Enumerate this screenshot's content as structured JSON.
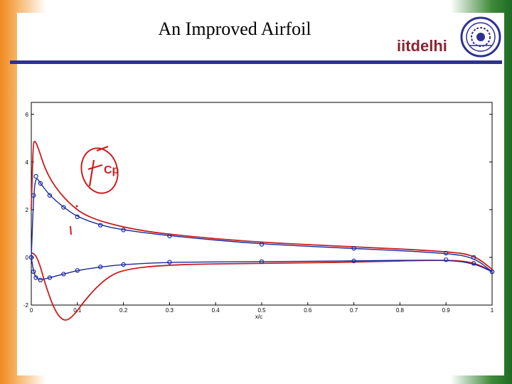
{
  "slide": {
    "title": "An Improved Airfoil",
    "logo": {
      "part1": "iitd",
      "part2": "elhi"
    },
    "annotation": "Cp"
  },
  "colors": {
    "brand_blue": "#2e3192",
    "logo_red": "#8a2432",
    "series_red": "#c81e1e",
    "series_blue": "#1a2a9e"
  },
  "icons": {
    "seal": "iit-delhi-seal-icon"
  },
  "chart_data": {
    "type": "line",
    "title": "",
    "xlabel": "x/c",
    "ylabel": "",
    "xlim": [
      0,
      1
    ],
    "ylim": [
      -2,
      6.5
    ],
    "xticks": [
      "0",
      "0.1",
      "0.2",
      "0.3",
      "0.4",
      "0.5",
      "0.6",
      "0.7",
      "0.8",
      "0.9",
      "1"
    ],
    "yticks": [
      "-2",
      "0",
      "2",
      "4",
      "6"
    ],
    "grid": false,
    "series": [
      {
        "line": "red",
        "surface": "upper",
        "x": [
          0,
          0.004,
          0.008,
          0.015,
          0.03,
          0.05,
          0.08,
          0.12,
          0.2,
          0.3,
          0.5,
          0.7,
          0.9,
          0.96,
          1.0
        ],
        "y": [
          2.0,
          4.8,
          4.9,
          4.6,
          3.7,
          3.0,
          2.3,
          1.7,
          1.25,
          0.95,
          0.62,
          0.45,
          0.25,
          0.1,
          -0.5
        ]
      },
      {
        "line": "red",
        "surface": "lower",
        "x": [
          0,
          0.01,
          0.02,
          0.03,
          0.05,
          0.07,
          0.09,
          0.12,
          0.16,
          0.2,
          0.3,
          0.5,
          0.7,
          0.9,
          0.96,
          1.0
        ],
        "y": [
          0.2,
          0.1,
          -0.4,
          -1.1,
          -2.2,
          -2.7,
          -2.5,
          -1.7,
          -0.9,
          -0.5,
          -0.3,
          -0.25,
          -0.2,
          -0.1,
          -0.2,
          -0.6
        ]
      },
      {
        "line": "blue",
        "surface": "upper",
        "x": [
          0,
          0.005,
          0.01,
          0.02,
          0.04,
          0.07,
          0.1,
          0.15,
          0.2,
          0.3,
          0.5,
          0.7,
          0.9,
          0.96,
          1.0
        ],
        "y": [
          0.0,
          2.6,
          3.4,
          3.1,
          2.6,
          2.1,
          1.7,
          1.35,
          1.15,
          0.9,
          0.55,
          0.38,
          0.18,
          0.0,
          -0.6
        ]
      },
      {
        "line": "blue",
        "surface": "lower",
        "x": [
          0,
          0.005,
          0.01,
          0.02,
          0.04,
          0.07,
          0.1,
          0.15,
          0.2,
          0.3,
          0.5,
          0.7,
          0.9,
          0.96,
          1.0
        ],
        "y": [
          0.0,
          -0.6,
          -0.85,
          -0.95,
          -0.85,
          -0.7,
          -0.55,
          -0.4,
          -0.3,
          -0.2,
          -0.18,
          -0.15,
          -0.1,
          -0.25,
          -0.6
        ]
      }
    ]
  }
}
